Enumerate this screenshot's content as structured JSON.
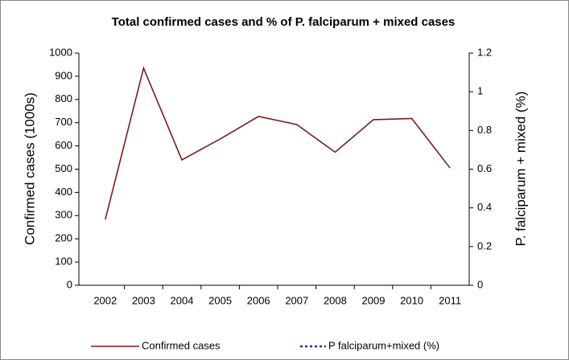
{
  "chart_data": {
    "type": "line",
    "title": "Total confirmed cases and % of P. falciparum + mixed cases",
    "y_label": "Confirmed cases  (1000s)",
    "y2_label": "P. falciparum + mixed (%)",
    "categories": [
      "2002",
      "2003",
      "2004",
      "2005",
      "2006",
      "2007",
      "2008",
      "2009",
      "2010",
      "2011"
    ],
    "series": [
      {
        "name": "Confirmed cases",
        "color": "#7b1c1c",
        "values": [
          283,
          935,
          540,
          630,
          727,
          692,
          573,
          713,
          718,
          505
        ]
      },
      {
        "name": "P falciparum+mixed (%)",
        "color": "#1f2f9f",
        "axis": "y2",
        "values": [
          null,
          null,
          null,
          null,
          null,
          null,
          null,
          null,
          null,
          null
        ]
      }
    ],
    "ylim": [
      0,
      1000
    ],
    "yticks": [
      0,
      100,
      200,
      300,
      400,
      500,
      600,
      700,
      800,
      900,
      1000
    ],
    "y2lim": [
      0,
      1.2
    ],
    "y2ticks": [
      0,
      0.2,
      0.4,
      0.6,
      0.8,
      1,
      1.2
    ],
    "grid": false,
    "legend": "bottom"
  }
}
